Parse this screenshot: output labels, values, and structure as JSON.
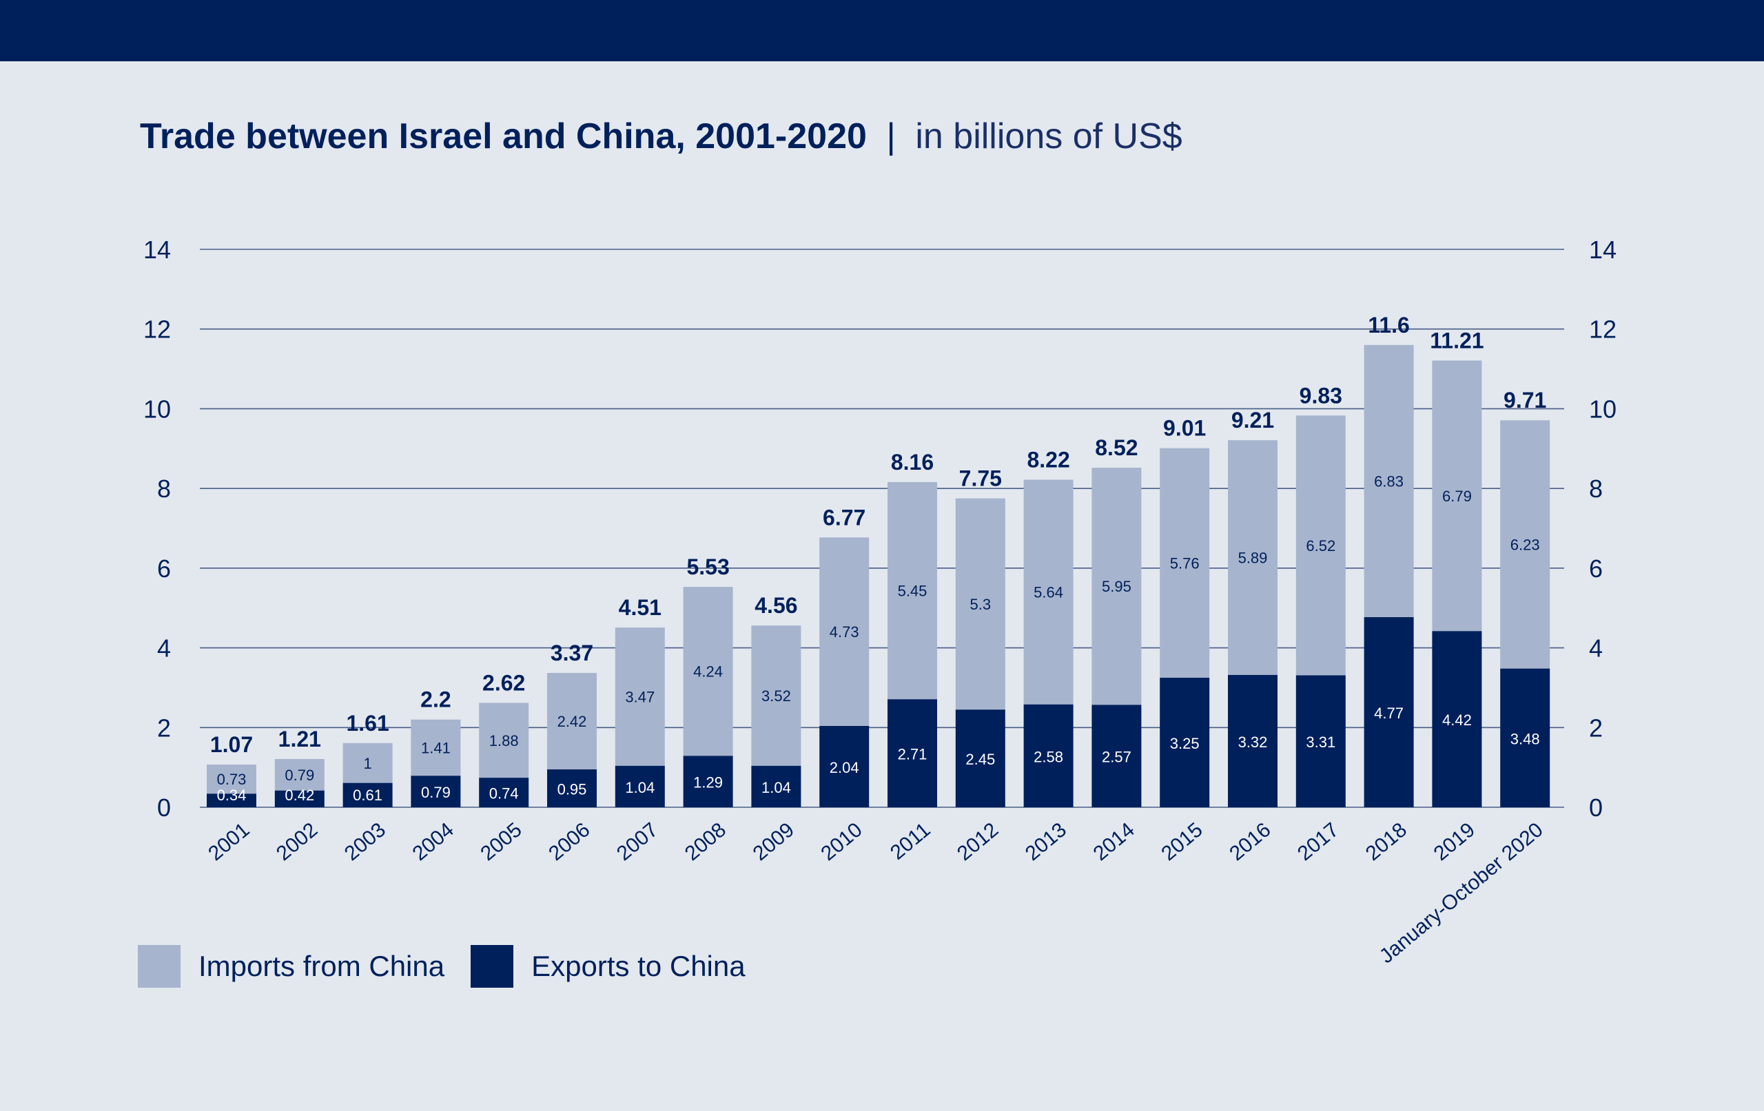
{
  "header": {
    "title_bold": "Trade between Israel and China, 2001-2020",
    "separator": "|",
    "title_unit": "in billions of US$"
  },
  "colors": {
    "background": "#e3e8ef",
    "topbar": "#00205b",
    "imports": "#a7b4cd",
    "exports": "#00205b",
    "gridline": "#4a5d86",
    "text": "#00205b"
  },
  "legend": {
    "imports_label": "Imports from China",
    "exports_label": "Exports to China"
  },
  "chart_data": {
    "type": "bar",
    "stacked": true,
    "ylim": [
      0,
      14
    ],
    "yticks": [
      0,
      2,
      4,
      6,
      8,
      10,
      12,
      14
    ],
    "grid": true,
    "right_axis_duplicate": true,
    "legend_position": "bottom-left",
    "categories": [
      "2001",
      "2002",
      "2003",
      "2004",
      "2005",
      "2006",
      "2007",
      "2008",
      "2009",
      "2010",
      "2011",
      "2012",
      "2013",
      "2014",
      "2015",
      "2016",
      "2017",
      "2018",
      "2019",
      "January-October 2020"
    ],
    "series": [
      {
        "name": "Exports to China",
        "values": [
          0.34,
          0.42,
          0.61,
          0.79,
          0.74,
          0.95,
          1.04,
          1.29,
          1.04,
          2.04,
          2.71,
          2.45,
          2.58,
          2.57,
          3.25,
          3.32,
          3.31,
          4.77,
          4.42,
          3.48
        ]
      },
      {
        "name": "Imports from China",
        "values": [
          0.73,
          0.79,
          1,
          1.41,
          1.88,
          2.42,
          3.47,
          4.24,
          3.52,
          4.73,
          5.45,
          5.3,
          5.64,
          5.95,
          5.76,
          5.89,
          6.52,
          6.83,
          6.79,
          6.23
        ]
      }
    ],
    "totals": [
      1.07,
      1.21,
      1.61,
      2.2,
      2.62,
      3.37,
      4.51,
      5.53,
      4.56,
      6.77,
      8.16,
      7.75,
      8.22,
      8.52,
      9.01,
      9.21,
      9.83,
      11.6,
      11.21,
      9.71
    ]
  }
}
